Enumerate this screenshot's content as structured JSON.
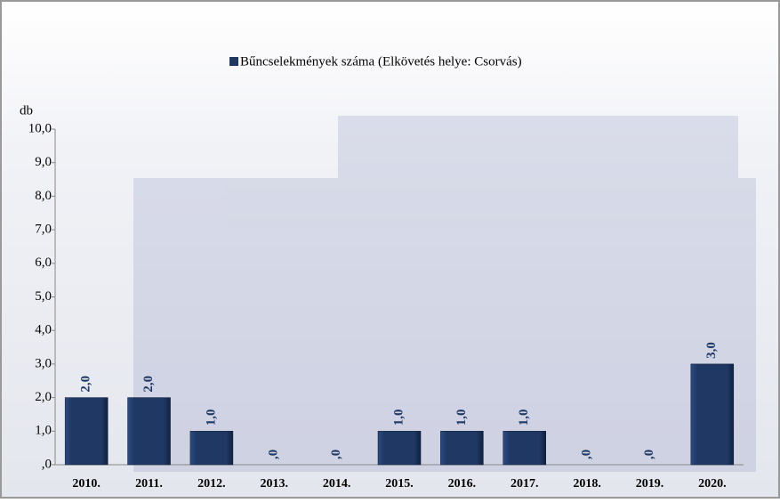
{
  "chart_data": {
    "type": "bar",
    "legend": "Bűncselekmények száma (Elkövetés helye: Csorvás)",
    "y_label": "db",
    "categories": [
      "2010.",
      "2011.",
      "2012.",
      "2013.",
      "2014.",
      "2015.",
      "2016.",
      "2017.",
      "2018.",
      "2019.",
      "2020."
    ],
    "values": [
      2,
      2,
      1,
      0,
      0,
      1,
      1,
      1,
      0,
      0,
      3
    ],
    "value_labels": [
      "2,0",
      "2,0",
      "1,0",
      ",0",
      ",0",
      "1,0",
      "1,0",
      "1,0",
      ",0",
      ",0",
      "3,0"
    ],
    "color": "#1f3864",
    "ylim": [
      0,
      10
    ],
    "yticks": [
      {
        "value": 0,
        "label": ",0"
      },
      {
        "value": 1,
        "label": "1,0"
      },
      {
        "value": 2,
        "label": "2,0"
      },
      {
        "value": 3,
        "label": "3,0"
      },
      {
        "value": 4,
        "label": "4,0"
      },
      {
        "value": 5,
        "label": "5,0"
      },
      {
        "value": 6,
        "label": "6,0"
      },
      {
        "value": 7,
        "label": "7,0"
      },
      {
        "value": 8,
        "label": "8,0"
      },
      {
        "value": 9,
        "label": "9,0"
      },
      {
        "value": 10,
        "label": "10,0"
      }
    ]
  }
}
